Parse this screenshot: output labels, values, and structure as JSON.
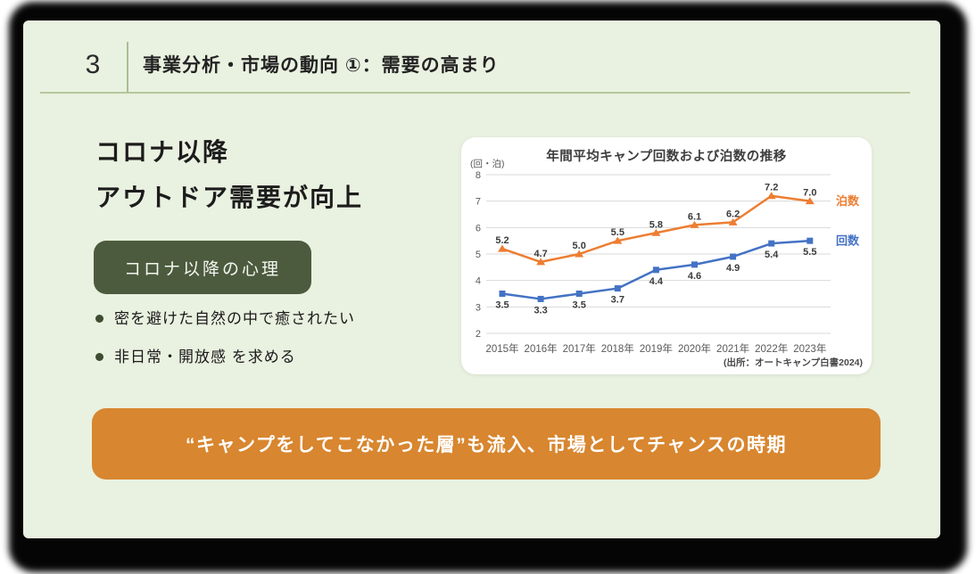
{
  "header": {
    "number": "3",
    "title": "事業分析・市場の動向 ①：需要の高まり"
  },
  "left_panel": {
    "heading_line1": "コロナ以降",
    "heading_line2": "アウトドア需要が向上",
    "badge_label": "コロナ以降の心理",
    "bullets": [
      "密を避けた自然の中で癒されたい",
      "非日常・開放感 を求める"
    ]
  },
  "banner": {
    "text": "“キャンプをしてこなかった層”も流入、市場としてチャンスの時期"
  },
  "colors": {
    "slide_bg": "#E9F1E0",
    "frame_bg": "#050505",
    "badge_bg": "#4C5B3E",
    "banner_bg": "#D8862F",
    "divider_green": "#B5C79D",
    "grid_gray": "#D9D9D9",
    "nights_orange": "#ED7D31",
    "times_blue": "#4472C4"
  },
  "chart_data": {
    "type": "line",
    "title": "年間平均キャンプ回数および泊数の推移",
    "unit_label": "(回・泊)",
    "source": "(出所：オートキャンプ白書2024)",
    "categories": [
      "2015年",
      "2016年",
      "2017年",
      "2018年",
      "2019年",
      "2020年",
      "2021年",
      "2022年",
      "2023年"
    ],
    "ylim": [
      2,
      8
    ],
    "y_ticks": [
      2,
      3,
      4,
      5,
      6,
      7,
      8
    ],
    "grid": true,
    "legend_position": "right-of-line-end",
    "series": [
      {
        "name": "泊数",
        "color": "#ED7D31",
        "marker": "triangle",
        "label_position": "above",
        "values": [
          5.2,
          4.7,
          5.0,
          5.5,
          5.8,
          6.1,
          6.2,
          7.2,
          7.0
        ]
      },
      {
        "name": "回数",
        "color": "#4472C4",
        "marker": "square",
        "label_position": "below",
        "values": [
          3.5,
          3.3,
          3.5,
          3.7,
          4.4,
          4.6,
          4.9,
          5.4,
          5.5
        ]
      }
    ]
  }
}
